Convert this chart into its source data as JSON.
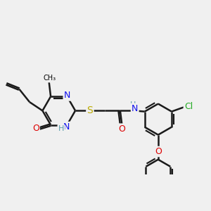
{
  "bg_color": "#f0f0f0",
  "bond_color": "#1a1a1a",
  "bond_width": 1.8,
  "dbo": 0.07,
  "atom_colors": {
    "N": "#1010ee",
    "O": "#dd0000",
    "S": "#bbaa00",
    "Cl": "#22aa22",
    "H_N": "#5599aa"
  },
  "fs": 8.5,
  "fig_size": [
    3.0,
    3.0
  ],
  "dpi": 100,
  "xlim": [
    -1.5,
    10.5
  ],
  "ylim": [
    -2.5,
    5.5
  ]
}
